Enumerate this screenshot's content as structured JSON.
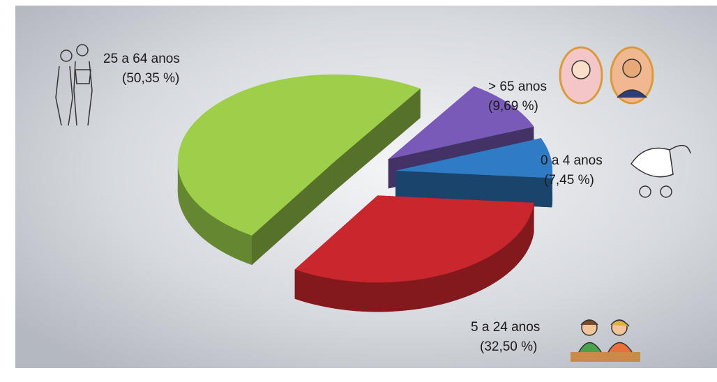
{
  "chart_data": {
    "type": "pie3d",
    "categories": [
      "0 a 4 anos",
      "5 a 24 anos",
      "25 a 64 anos",
      "> 65 anos"
    ],
    "values": [
      7.45,
      32.5,
      50.35,
      9.69
    ],
    "value_labels": [
      "(7,45 %)",
      "(32,50 %)",
      "(50,35 %)",
      "(9,69 %)"
    ],
    "colors": [
      "#2f7cc4",
      "#c9262d",
      "#9dcf4b",
      "#7a5ab8"
    ]
  }
}
